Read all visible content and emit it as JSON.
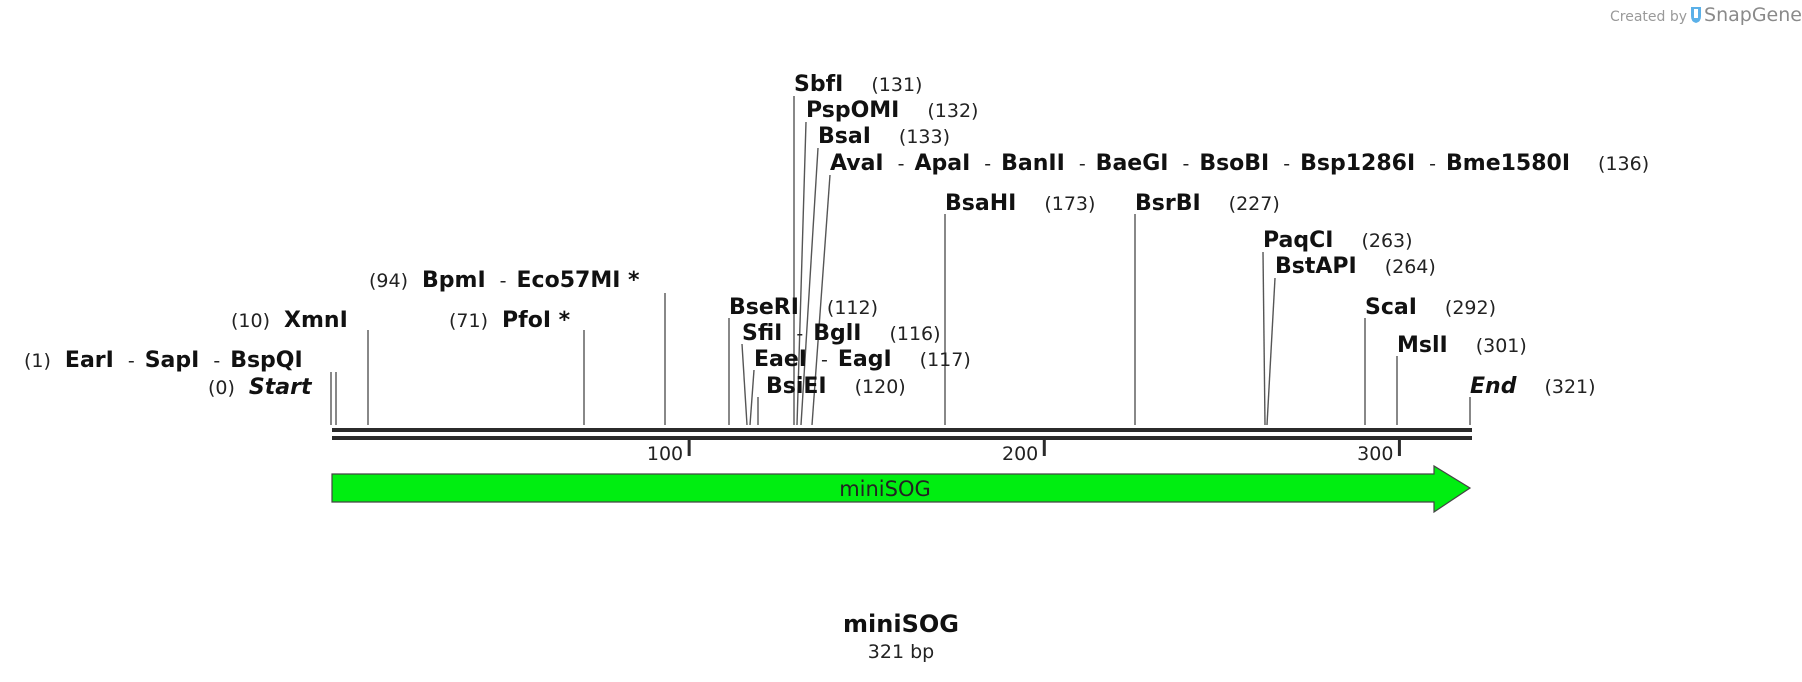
{
  "credit": {
    "prefix": "Created by",
    "brand": "SnapGene",
    "logo_icon": "snapgene-logo-icon",
    "color": "#9a9a9a"
  },
  "sequence": {
    "name": "miniSOG",
    "length_label": "321 bp",
    "length_bp": 321
  },
  "ruler": {
    "ticks": [
      {
        "bp": 100,
        "label": "100"
      },
      {
        "bp": 200,
        "label": "200"
      },
      {
        "bp": 300,
        "label": "300"
      }
    ]
  },
  "feature": {
    "name": "miniSOG",
    "start": 1,
    "end": 321,
    "direction": "forward",
    "color": "#00ee11"
  },
  "sites": [
    {
      "names": [
        "Start"
      ],
      "pos_label": "(0)",
      "bp": 0,
      "style": "bold-italic"
    },
    {
      "names": [
        "EarI",
        "SapI",
        "BspQI"
      ],
      "pos_label": "(1)",
      "bp": 1
    },
    {
      "names": [
        "XmnI"
      ],
      "pos_label": "(10)",
      "bp": 10
    },
    {
      "names": [
        "PfoI *"
      ],
      "pos_label": "(71)",
      "bp": 71
    },
    {
      "names": [
        "BpmI",
        "Eco57MI *"
      ],
      "pos_label": "(94)",
      "bp": 94
    },
    {
      "names": [
        "BseRI"
      ],
      "pos_label": "(112)",
      "bp": 112
    },
    {
      "names": [
        "SfiI",
        "BglI"
      ],
      "pos_label": "(116)",
      "bp": 116
    },
    {
      "names": [
        "EaeI",
        "EagI"
      ],
      "pos_label": "(117)",
      "bp": 117
    },
    {
      "names": [
        "BsiEI"
      ],
      "pos_label": "(120)",
      "bp": 120
    },
    {
      "names": [
        "SbfI"
      ],
      "pos_label": "(131)",
      "bp": 131
    },
    {
      "names": [
        "PspOMI"
      ],
      "pos_label": "(132)",
      "bp": 132
    },
    {
      "names": [
        "BsaI"
      ],
      "pos_label": "(133)",
      "bp": 133
    },
    {
      "names": [
        "AvaI",
        "ApaI",
        "BanII",
        "BaeGI",
        "BsoBI",
        "Bsp1286I",
        "Bme1580I"
      ],
      "pos_label": "(136)",
      "bp": 136
    },
    {
      "names": [
        "BsaHI"
      ],
      "pos_label": "(173)",
      "bp": 173
    },
    {
      "names": [
        "BsrBI"
      ],
      "pos_label": "(227)",
      "bp": 227
    },
    {
      "names": [
        "PaqCI"
      ],
      "pos_label": "(263)",
      "bp": 263
    },
    {
      "names": [
        "BstAPI"
      ],
      "pos_label": "(264)",
      "bp": 264
    },
    {
      "names": [
        "ScaI"
      ],
      "pos_label": "(292)",
      "bp": 292
    },
    {
      "names": [
        "MslI"
      ],
      "pos_label": "(301)",
      "bp": 301
    },
    {
      "names": [
        "End"
      ],
      "pos_label": "(321)",
      "bp": 321,
      "style": "bold-italic"
    }
  ]
}
